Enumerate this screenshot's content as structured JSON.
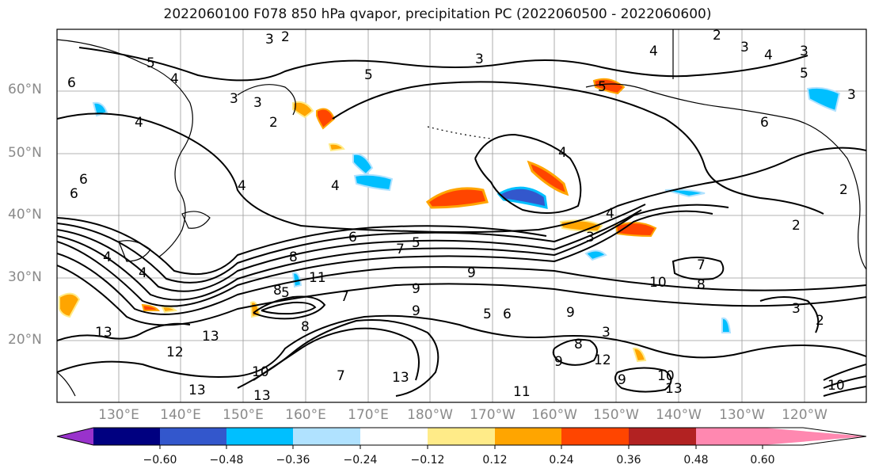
{
  "title": "2022060100 F078 850 hPa qvapor, precipitation PC (2022060500 - 2022060600)",
  "map": {
    "lat_labels": [
      "60°N",
      "50°N",
      "40°N",
      "30°N",
      "20°N"
    ],
    "lon_labels": [
      "130°E",
      "140°E",
      "150°E",
      "160°E",
      "170°E",
      "180°W",
      "170°W",
      "160°W",
      "150°W",
      "140°W",
      "130°W",
      "120°W"
    ],
    "contour_labels": [
      "3",
      "2",
      "5",
      "4",
      "6",
      "3",
      "5",
      "3",
      "4",
      "2",
      "3",
      "4",
      "3",
      "2",
      "6",
      "5",
      "3",
      "4",
      "5",
      "4",
      "3",
      "4",
      "2",
      "6",
      "2",
      "4",
      "5",
      "3",
      "6",
      "4",
      "8",
      "7",
      "9",
      "4",
      "8",
      "6",
      "9",
      "10",
      "11",
      "7",
      "5",
      "3",
      "7",
      "13",
      "12",
      "9",
      "10",
      "8",
      "13",
      "13",
      "13",
      "9",
      "9",
      "8",
      "3",
      "7",
      "6",
      "10",
      "11",
      "13",
      "10",
      "13",
      "5",
      "2",
      "4",
      "9",
      "8",
      "12"
    ]
  },
  "colorbar": {
    "tick_labels": [
      "−0.60",
      "−0.48",
      "−0.36",
      "−0.24",
      "−0.12",
      "0.12",
      "0.24",
      "0.36",
      "0.48",
      "0.60"
    ],
    "colors": [
      "#9932cc",
      "#000080",
      "#3357cc",
      "#00bfff",
      "#b0e2ff",
      "#ffffff",
      "#ffeb88",
      "#ffa500",
      "#ff4500",
      "#b22222",
      "#ff88b0"
    ]
  }
}
